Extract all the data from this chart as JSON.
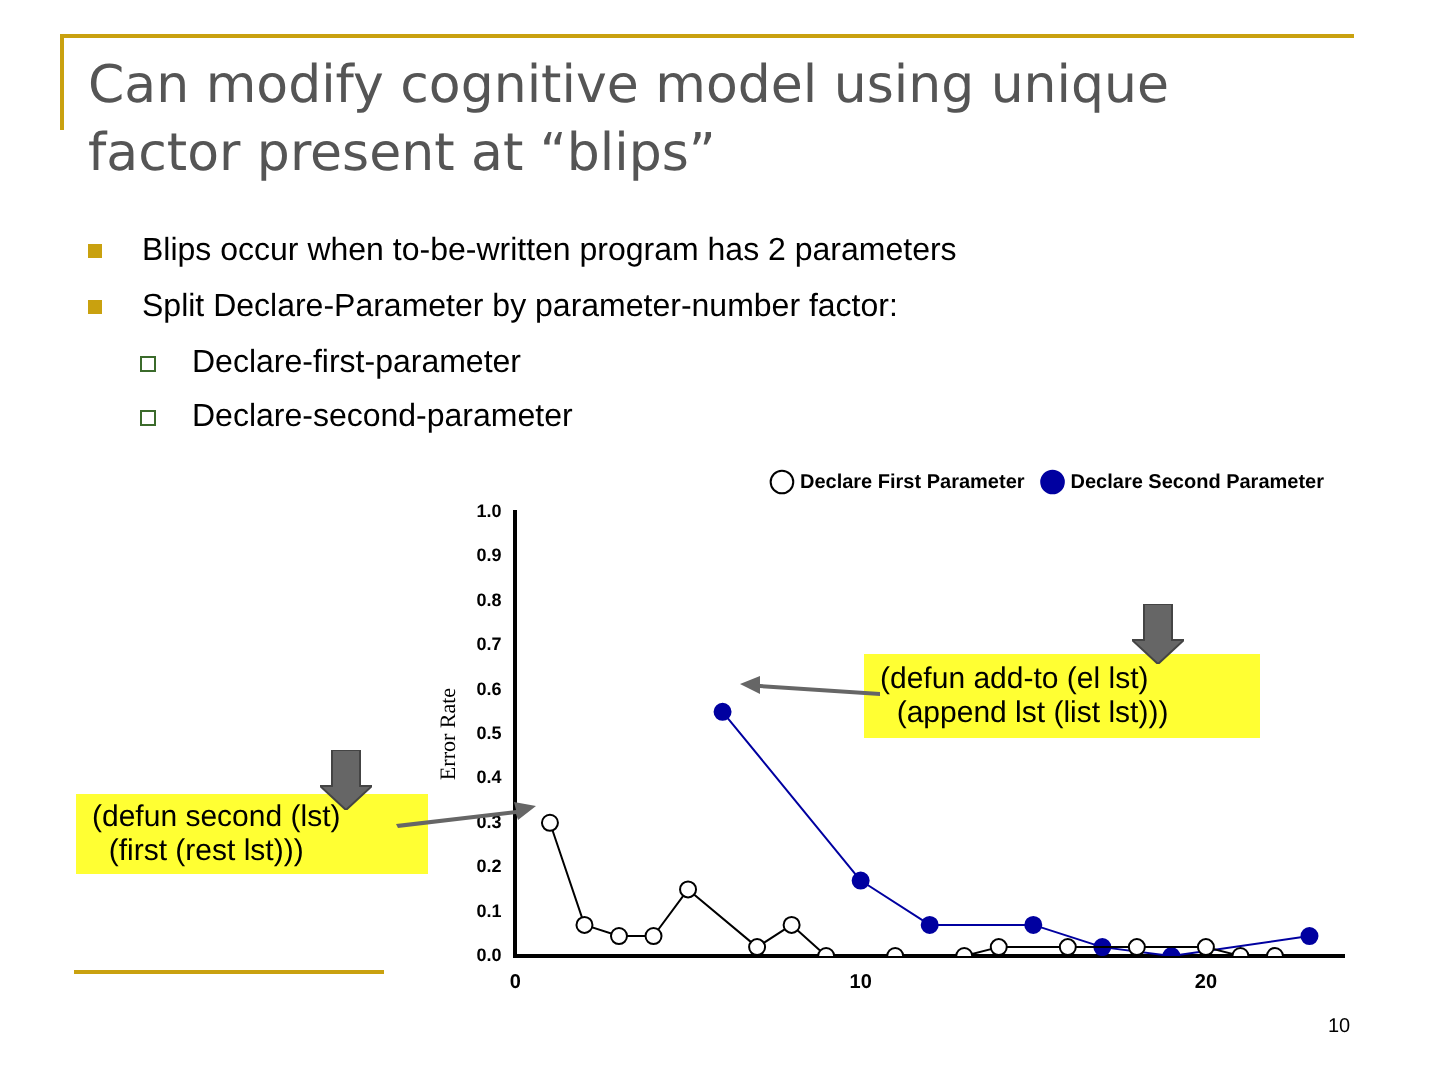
{
  "chart_data": {
    "type": "line",
    "title": "Can modify cognitive model using unique factor present at “blips”",
    "ylabel": "Error Rate",
    "annotations": [
      "Blips occur when to-be-written program has 2 parameters",
      "Split Declare-Parameter by parameter-number factor:",
      "Declare-first-parameter",
      "Declare-second-parameter",
      "(defun second (lst)\n  (first (rest lst)))",
      "(defun add-to (el lst)\n  (append lst (list lst)))",
      "10"
    ],
    "series": [
      {
        "name": "Declare First Parameter",
        "color": "#000000",
        "marker": "circle",
        "x": [
          1,
          2,
          3,
          4,
          5,
          7,
          8,
          9,
          11,
          13,
          14,
          16,
          18,
          20,
          21,
          22
        ],
        "values": [
          0.3,
          0.07,
          0.045,
          0.045,
          0.15,
          0.02,
          0.07,
          0,
          0,
          0,
          0.02,
          0.02,
          0.02,
          0.02,
          0,
          0
        ]
      },
      {
        "name": "Declare Second Parameter",
        "color": "#0000a0",
        "marker": "circle",
        "x": [
          6,
          10,
          12,
          15,
          17,
          19,
          23
        ],
        "values": [
          0.55,
          0.17,
          0.07,
          0.07,
          0.02,
          0,
          0.045
        ]
      }
    ],
    "xlim": [
      0,
      24
    ],
    "xticks": [
      0,
      10,
      20
    ],
    "ylim": [
      0,
      1
    ],
    "yticks": [
      {
        "value": 0,
        "label": "0.0"
      },
      {
        "value": 0.1,
        "label": "0.1"
      },
      {
        "value": 0.2,
        "label": "0.2"
      },
      {
        "value": 0.3,
        "label": "0.3"
      },
      {
        "value": 0.4,
        "label": "0.4"
      },
      {
        "value": 0.5,
        "label": "0.5"
      },
      {
        "value": 0.6,
        "label": "0.6"
      },
      {
        "value": 0.7,
        "label": "0.7"
      },
      {
        "value": 0.8,
        "label": "0.8"
      },
      {
        "value": 0.9,
        "label": "0.9"
      },
      {
        "value": 1,
        "label": "1.0"
      }
    ],
    "grid": false,
    "legend": "top right"
  }
}
